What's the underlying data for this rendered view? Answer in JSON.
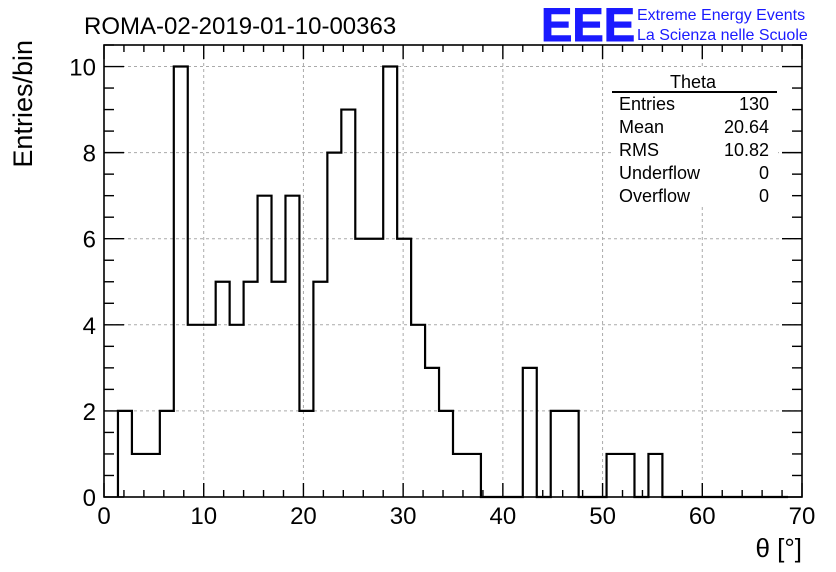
{
  "chart_data": {
    "type": "bar",
    "title": "ROMA-02-2019-01-10-00363",
    "xlabel": "θ [°]",
    "ylabel": "Entries/bin",
    "xlim": [
      0,
      70
    ],
    "ylim": [
      0,
      10.5
    ],
    "xticks": [
      0,
      10,
      20,
      30,
      40,
      50,
      60,
      70
    ],
    "yticks": [
      0,
      2,
      4,
      6,
      8,
      10
    ],
    "grid": true,
    "bin_width": 1.4,
    "bins_x_start": 1.4,
    "counts": [
      2,
      1,
      1,
      2,
      10,
      4,
      4,
      5,
      4,
      5,
      7,
      5,
      7,
      2,
      5,
      8,
      9,
      6,
      6,
      10,
      6,
      4,
      3,
      2,
      1,
      1,
      0,
      0,
      0,
      3,
      0,
      2,
      2,
      0,
      0,
      1,
      1,
      0,
      1,
      0,
      0,
      0,
      0,
      0,
      0,
      0,
      0,
      0
    ],
    "stats_box": {
      "title": "Theta",
      "rows": [
        {
          "label": "Entries",
          "value": "130"
        },
        {
          "label": "Mean",
          "value": "20.64"
        },
        {
          "label": "RMS",
          "value": "10.82"
        },
        {
          "label": "Underflow",
          "value": "0"
        },
        {
          "label": "Overflow",
          "value": "0"
        }
      ],
      "placement": "top-right"
    }
  },
  "logo": {
    "text": "EEE",
    "line1": "Extreme Energy Events",
    "line2": "La Scienza nelle Scuole",
    "color": "#1a1aff"
  },
  "colors": {
    "line": "#000000",
    "grid": "#aaaaaa",
    "logo": "#1a1aff"
  }
}
